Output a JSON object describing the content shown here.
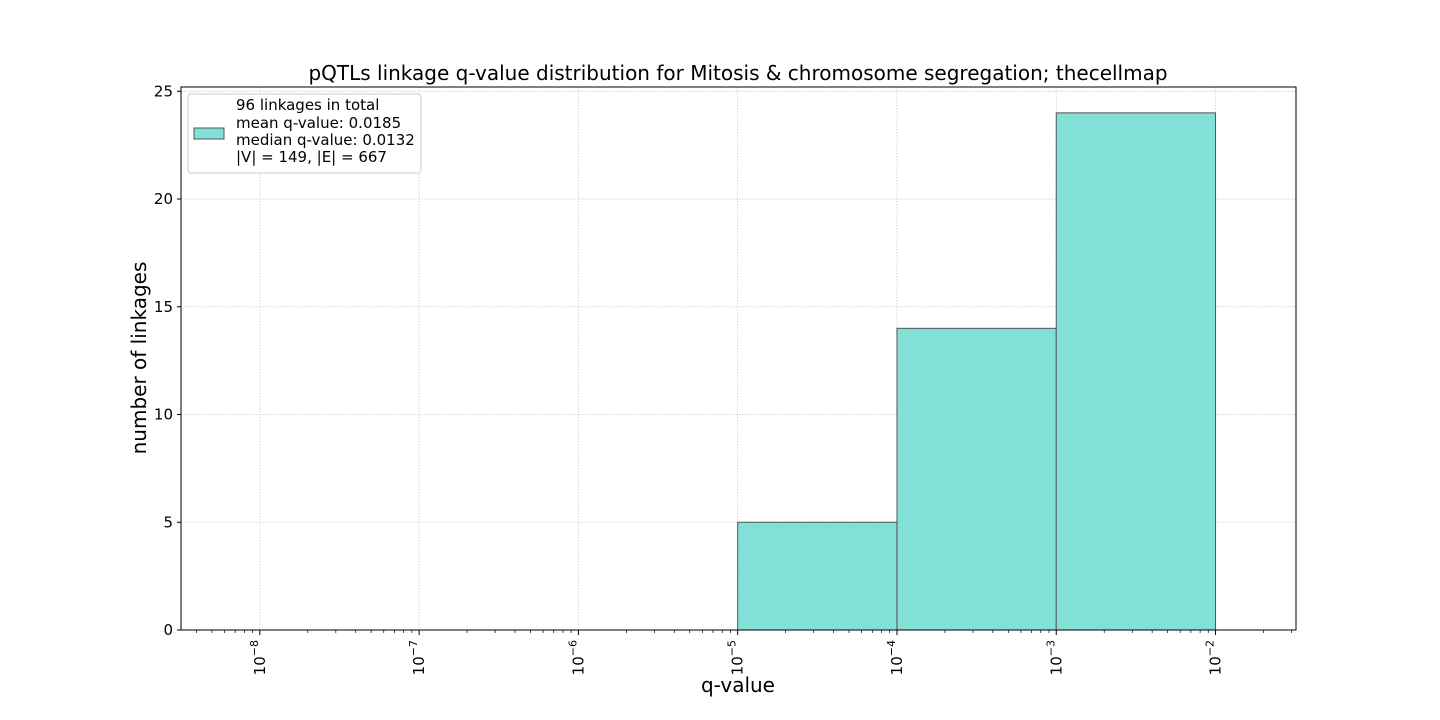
{
  "chart_data": {
    "type": "bar",
    "title": "pQTLs linkage q-value distribution for Mitosis & chromosome segregation; thecellmap",
    "xlabel": "q-value",
    "ylabel": "number of linkages",
    "x_scale": "log",
    "x_range": [
      3.2e-09,
      0.032
    ],
    "y_range": [
      0,
      25.2
    ],
    "x_tick_exponents": [
      -8,
      -7,
      -6,
      -5,
      -4,
      -3,
      -2
    ],
    "y_ticks": [
      0,
      5,
      10,
      15,
      20,
      25
    ],
    "bins": [
      {
        "x0": 1e-08,
        "x1": 1e-07,
        "count": 0
      },
      {
        "x0": 1e-07,
        "x1": 1e-06,
        "count": 0
      },
      {
        "x0": 1e-06,
        "x1": 1e-05,
        "count": 0
      },
      {
        "x0": 1e-05,
        "x1": 0.0001,
        "count": 5
      },
      {
        "x0": 0.0001,
        "x1": 0.001,
        "count": 14
      },
      {
        "x0": 0.001,
        "x1": 0.01,
        "count": 24
      }
    ],
    "bar_color": "#82e0d6",
    "edge_color": "#555555",
    "grid": true,
    "legend": {
      "position": "top-left",
      "lines": [
        "96 linkages in total",
        "mean q-value: 0.0185",
        "median q-value: 0.0132",
        "|V| = 149, |E| = 667"
      ]
    }
  }
}
